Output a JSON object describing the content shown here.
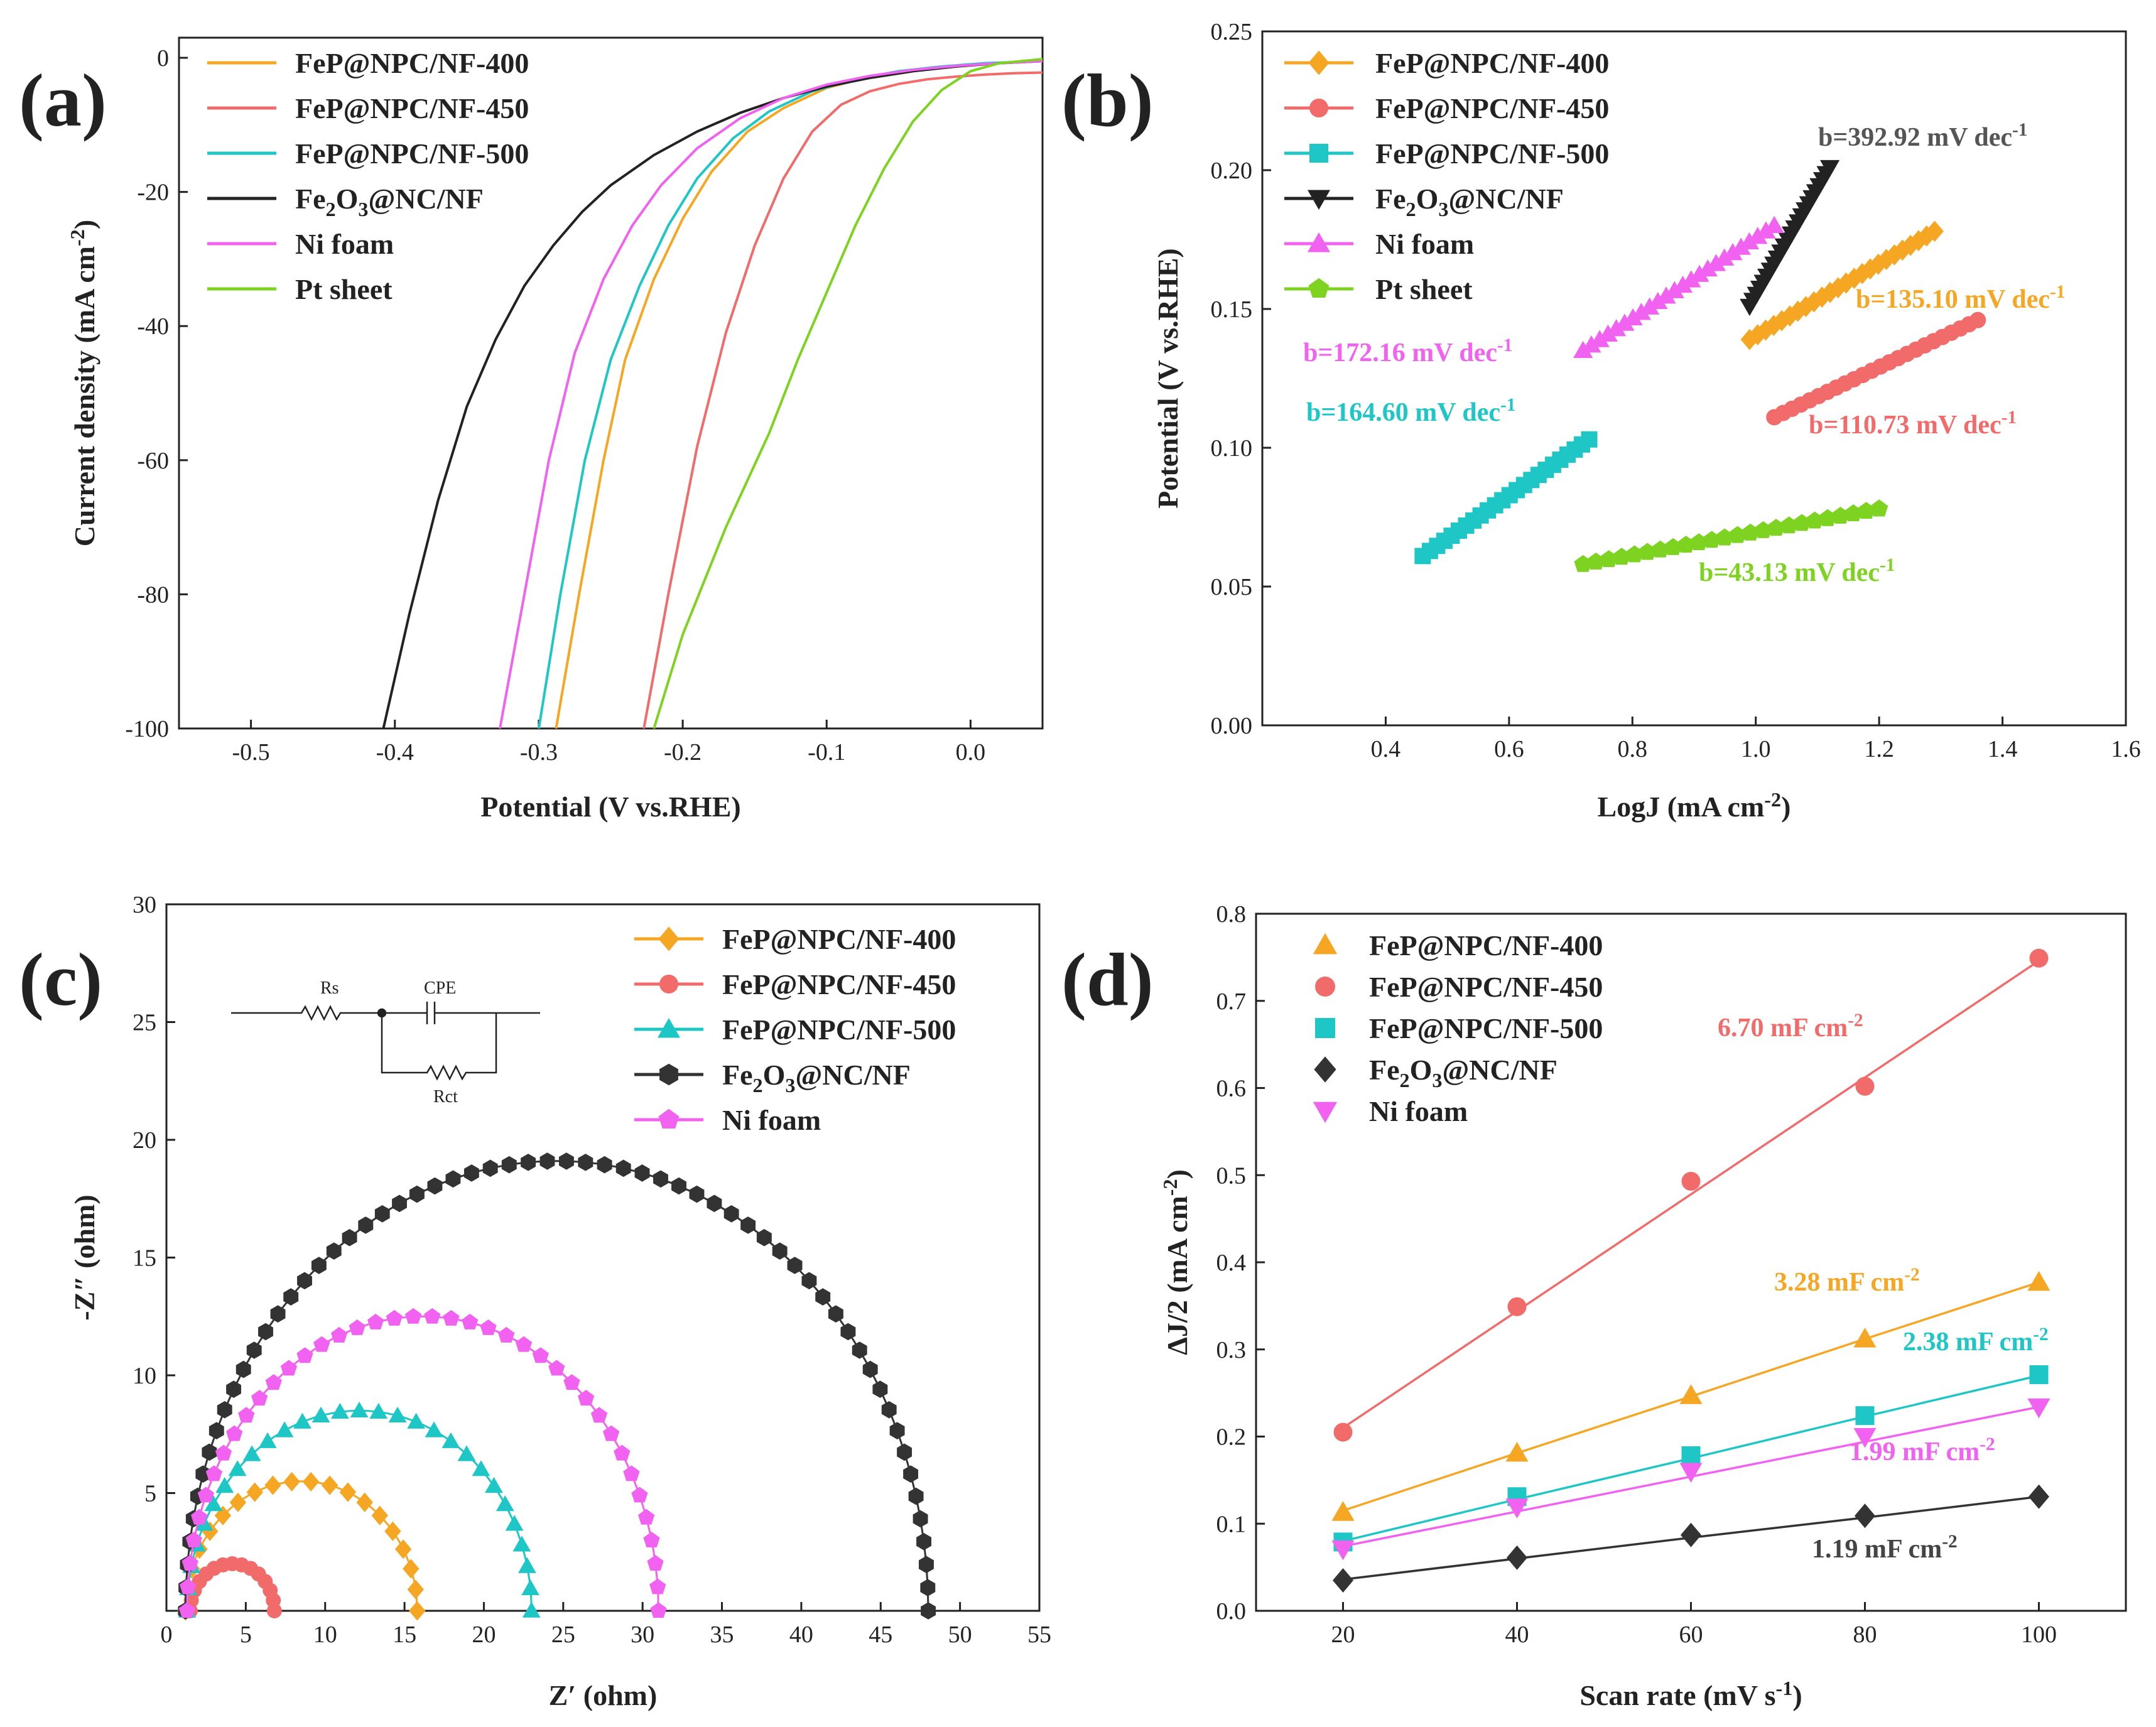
{
  "chart_data": [
    {
      "panel_label": "(a)",
      "type": "line",
      "xlabel": "Potential (V vs.RHE)",
      "ylabel_main": "Current density (mA cm",
      "ylabel_sup": "-2",
      "ylabel_tail": ")",
      "xlim": [
        -0.55,
        0.05
      ],
      "ylim": [
        -100,
        3
      ],
      "xticks": [
        -0.5,
        -0.4,
        -0.3,
        -0.2,
        -0.1,
        0.0
      ],
      "xtick_labels": [
        "-0.5",
        "-0.4",
        "-0.3",
        "-0.2",
        "-0.1",
        "0.0"
      ],
      "yticks": [
        0,
        -20,
        -40,
        -60,
        -80,
        -100
      ],
      "ytick_labels": [
        "0",
        "-20",
        "-40",
        "-60",
        "-80",
        "-100"
      ],
      "legend_position": "top-left",
      "series": [
        {
          "name": "FeP@NPC/NF-400",
          "color": "#F5A623",
          "x": [
            -0.288,
            -0.272,
            -0.255,
            -0.24,
            -0.22,
            -0.2,
            -0.18,
            -0.155,
            -0.13,
            -0.1,
            -0.07,
            -0.04,
            -0.01,
            0.02,
            0.05
          ],
          "y": [
            -100,
            -80,
            -60,
            -45,
            -33,
            -24,
            -17,
            -11,
            -7.5,
            -4.5,
            -2.8,
            -1.8,
            -1.2,
            -0.8,
            -0.5
          ]
        },
        {
          "name": "FeP@NPC/NF-450",
          "color": "#F26B6B",
          "x": [
            -0.227,
            -0.21,
            -0.19,
            -0.17,
            -0.15,
            -0.13,
            -0.11,
            -0.09,
            -0.07,
            -0.05,
            -0.03,
            -0.01,
            0.01,
            0.03,
            0.05
          ],
          "y": [
            -100,
            -80,
            -58,
            -41,
            -28,
            -18,
            -11,
            -7,
            -5,
            -3.9,
            -3.2,
            -2.8,
            -2.5,
            -2.3,
            -2.2
          ]
        },
        {
          "name": "FeP@NPC/NF-500",
          "color": "#1FC6C6",
          "x": [
            -0.3,
            -0.285,
            -0.268,
            -0.25,
            -0.23,
            -0.21,
            -0.19,
            -0.165,
            -0.14,
            -0.11,
            -0.08,
            -0.05,
            -0.02,
            0.01,
            0.05
          ],
          "y": [
            -100,
            -80,
            -60,
            -45,
            -34,
            -25,
            -18,
            -12,
            -8,
            -5,
            -3.2,
            -2,
            -1.3,
            -0.8,
            -0.5
          ]
        },
        {
          "name": "Fe2O3@NC/NF",
          "color": "#222222",
          "x": [
            -0.408,
            -0.39,
            -0.37,
            -0.35,
            -0.33,
            -0.31,
            -0.29,
            -0.27,
            -0.25,
            -0.22,
            -0.19,
            -0.16,
            -0.13,
            -0.1,
            -0.07,
            -0.04,
            -0.01,
            0.02,
            0.05
          ],
          "y": [
            -100,
            -83,
            -66,
            -52,
            -42,
            -34,
            -28,
            -23,
            -19,
            -14.5,
            -11,
            -8.2,
            -6,
            -4.3,
            -3,
            -2,
            -1.3,
            -0.8,
            -0.5
          ]
        },
        {
          "name": "Ni foam",
          "color": "#F062EF",
          "x": [
            -0.327,
            -0.31,
            -0.293,
            -0.275,
            -0.255,
            -0.235,
            -0.215,
            -0.19,
            -0.16,
            -0.13,
            -0.1,
            -0.07,
            -0.04,
            -0.01,
            0.02,
            0.05
          ],
          "y": [
            -100,
            -80,
            -60,
            -44,
            -33,
            -25,
            -19,
            -13.5,
            -9,
            -6,
            -4,
            -2.7,
            -1.8,
            -1.2,
            -0.8,
            -0.5
          ]
        },
        {
          "name": "Pt sheet",
          "color": "#7ED321",
          "x": [
            -0.22,
            -0.2,
            -0.17,
            -0.14,
            -0.12,
            -0.1,
            -0.08,
            -0.06,
            -0.04,
            -0.02,
            0.0,
            0.02,
            0.05
          ],
          "y": [
            -100,
            -86,
            -70,
            -56,
            -45,
            -35,
            -25,
            -16.5,
            -9.5,
            -4.8,
            -2,
            -0.8,
            -0.2
          ]
        }
      ]
    },
    {
      "panel_label": "(b)",
      "type": "scatter",
      "xlabel_main": "LogJ (mA cm",
      "xlabel_sup": "-2",
      "xlabel_tail": ")",
      "ylabel": "Potential (V vs.RHE)",
      "xlim": [
        0.2,
        1.6
      ],
      "ylim": [
        0.0,
        0.25
      ],
      "xticks": [
        0.4,
        0.6,
        0.8,
        1.0,
        1.2,
        1.4,
        1.6
      ],
      "xtick_labels": [
        "0.4",
        "0.6",
        "0.8",
        "1.0",
        "1.2",
        "1.4",
        "1.6"
      ],
      "yticks": [
        0.0,
        0.05,
        0.1,
        0.15,
        0.2,
        0.25
      ],
      "ytick_labels": [
        "0.00",
        "0.05",
        "0.10",
        "0.15",
        "0.20",
        "0.25"
      ],
      "legend_position": "top-left",
      "series": [
        {
          "name": "FeP@NPC/NF-400",
          "color": "#F5A623",
          "marker": "diamond",
          "x_range": [
            0.99,
            1.29
          ],
          "y_range": [
            0.139,
            0.178
          ]
        },
        {
          "name": "FeP@NPC/NF-450",
          "color": "#F26B6B",
          "marker": "circle",
          "x_range": [
            1.03,
            1.36
          ],
          "y_range": [
            0.111,
            0.146
          ]
        },
        {
          "name": "FeP@NPC/NF-500",
          "color": "#1FC6C6",
          "marker": "square",
          "x_range": [
            0.46,
            0.73
          ],
          "y_range": [
            0.061,
            0.103
          ]
        },
        {
          "name": "Fe2O3@NC/NF",
          "color": "#222222",
          "marker": "triangle-down",
          "x_range": [
            0.99,
            1.12
          ],
          "y_range": [
            0.151,
            0.201
          ]
        },
        {
          "name": "Ni foam",
          "color": "#F062EF",
          "marker": "triangle-up",
          "x_range": [
            0.72,
            1.03
          ],
          "y_range": [
            0.135,
            0.18
          ]
        },
        {
          "name": "Pt sheet",
          "color": "#7ED321",
          "marker": "pentagon",
          "x_range": [
            0.72,
            1.2
          ],
          "y_range": [
            0.058,
            0.078
          ]
        }
      ],
      "annotations": [
        {
          "text": "b=392.92 mV dec",
          "sup": "-1",
          "color": "#555555"
        },
        {
          "text": "b=135.10 mV dec",
          "sup": "-1",
          "color": "#F5A623"
        },
        {
          "text": "b=172.16 mV dec",
          "sup": "-1",
          "color": "#F062EF"
        },
        {
          "text": "b=164.60 mV dec",
          "sup": "-1",
          "color": "#1FC6C6"
        },
        {
          "text": "b=110.73 mV dec",
          "sup": "-1",
          "color": "#F26B6B"
        },
        {
          "text": "b=43.13 mV dec",
          "sup": "-1",
          "color": "#7ED321"
        }
      ]
    },
    {
      "panel_label": "(c)",
      "type": "scatter",
      "xlabel": "Z′ (ohm)",
      "ylabel": "-Z″ (ohm)",
      "xlim": [
        0,
        55
      ],
      "ylim": [
        0,
        30
      ],
      "xticks": [
        0,
        5,
        10,
        15,
        20,
        25,
        30,
        35,
        40,
        45,
        50,
        55
      ],
      "xtick_labels": [
        "0",
        "5",
        "10",
        "15",
        "20",
        "25",
        "30",
        "35",
        "40",
        "45",
        "50",
        "55"
      ],
      "yticks": [
        5,
        10,
        15,
        20,
        25,
        30
      ],
      "ytick_labels": [
        "5",
        "10",
        "15",
        "20",
        "25",
        "30"
      ],
      "legend_position": "top-right",
      "circuit": {
        "labels": [
          "Rs",
          "CPE",
          "Rct"
        ]
      },
      "series": [
        {
          "name": "FeP@NPC/NF-400",
          "color": "#F5A623",
          "marker": "diamond",
          "z_start": 1.2,
          "z_end": 15.8,
          "peak": 5.5
        },
        {
          "name": "FeP@NPC/NF-450",
          "color": "#F26B6B",
          "marker": "circle",
          "z_start": 1.5,
          "z_end": 6.8,
          "peak": 2.0
        },
        {
          "name": "FeP@NPC/NF-500",
          "color": "#1FC6C6",
          "marker": "triangle-up",
          "z_start": 1.3,
          "z_end": 23.0,
          "peak": 8.5
        },
        {
          "name": "Fe2O3@NC/NF",
          "color": "#333333",
          "marker": "hexagon",
          "z_start": 1.2,
          "z_end": 48.0,
          "peak": 19.1
        },
        {
          "name": "Ni foam",
          "color": "#F062EF",
          "marker": "pentagon",
          "z_start": 1.3,
          "z_end": 31.0,
          "peak": 12.5
        }
      ]
    },
    {
      "panel_label": "(d)",
      "type": "scatter",
      "xlabel_main": "Scan rate (mV s",
      "xlabel_sup": "-1",
      "xlabel_tail": ")",
      "ylabel_main": "ΔJ/2 (mA cm",
      "ylabel_sup": "-2",
      "ylabel_tail": ")",
      "xlim": [
        10,
        110
      ],
      "ylim": [
        0.0,
        0.8
      ],
      "xticks": [
        20,
        40,
        60,
        80,
        100
      ],
      "xtick_labels": [
        "20",
        "40",
        "60",
        "80",
        "100"
      ],
      "yticks": [
        0.0,
        0.1,
        0.2,
        0.3,
        0.4,
        0.5,
        0.6,
        0.7,
        0.8
      ],
      "ytick_labels": [
        "0.0",
        "0.1",
        "0.2",
        "0.3",
        "0.4",
        "0.5",
        "0.6",
        "0.7",
        "0.8"
      ],
      "legend_position": "top-left",
      "x": [
        20,
        40,
        60,
        80,
        100
      ],
      "series": [
        {
          "name": "FeP@NPC/NF-400",
          "color": "#F5A623",
          "marker": "triangle-up",
          "values": [
            0.113,
            0.181,
            0.247,
            0.312,
            0.377
          ],
          "fit": [
            0.115,
            0.181,
            0.246,
            0.312,
            0.377
          ]
        },
        {
          "name": "FeP@NPC/NF-450",
          "color": "#F26B6B",
          "marker": "circle",
          "values": [
            0.205,
            0.349,
            0.493,
            0.602,
            0.749
          ],
          "fit": [
            0.21,
            0.344,
            0.478,
            0.612,
            0.746
          ]
        },
        {
          "name": "FeP@NPC/NF-500",
          "color": "#1FC6C6",
          "marker": "square",
          "values": [
            0.079,
            0.131,
            0.178,
            0.224,
            0.271
          ],
          "fit": [
            0.08,
            0.128,
            0.175,
            0.223,
            0.27
          ]
        },
        {
          "name": "Fe2O3@NC/NF",
          "color": "#333333",
          "marker": "diamond",
          "values": [
            0.035,
            0.061,
            0.087,
            0.109,
            0.131
          ],
          "fit": [
            0.036,
            0.06,
            0.084,
            0.107,
            0.131
          ]
        },
        {
          "name": "Ni foam",
          "color": "#F062EF",
          "marker": "triangle-down",
          "values": [
            0.071,
            0.119,
            0.16,
            0.2,
            0.234
          ],
          "fit": [
            0.074,
            0.114,
            0.154,
            0.194,
            0.234
          ]
        }
      ],
      "annotations": [
        {
          "text": "6.70 mF cm",
          "sup": "-2",
          "color": "#F26B6B"
        },
        {
          "text": "3.28 mF cm",
          "sup": "-2",
          "color": "#F5A623"
        },
        {
          "text": "2.38 mF cm",
          "sup": "-2",
          "color": "#1FC6C6"
        },
        {
          "text": "1.99 mF cm",
          "sup": "-2",
          "color": "#F062EF"
        },
        {
          "text": "1.19 mF cm",
          "sup": "-2",
          "color": "#444444"
        }
      ]
    }
  ]
}
